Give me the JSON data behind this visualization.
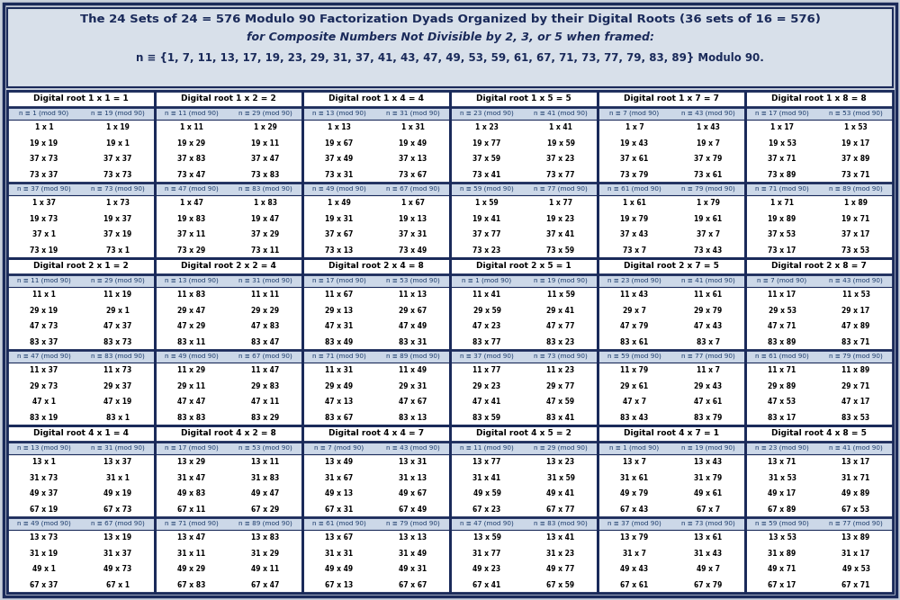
{
  "title_line1": "The 24 Sets of 24 = 576 Modulo 90 Factorization Dyads Organized by their Digital Roots (36 sets of 16 = 576)",
  "title_line2": "for Composite Numbers Not Divisible by 2, 3, or 5 when framed:",
  "title_line3": "n ≡ {1, 7, 11, 13, 17, 19, 23, 29, 31, 37, 41, 43, 47, 49, 53, 59, 61, 67, 71, 73, 77, 79, 83, 89} Modulo 90.",
  "bg_outer": "#c8d0dc",
  "bg_header": "#d8e0ea",
  "bg_section_header": "#ffffff",
  "bg_sub_header": "#ccd8e8",
  "border_color": "#1a2a5a",
  "text_color_dark": "#000000",
  "text_color_header": "#1a2a5a",
  "sections": [
    {
      "title": "Digital root 1 x 1 = 1",
      "sub1_header": [
        "n ≡ 1 (mod 90)",
        "n ≡ 19 (mod 90)"
      ],
      "sub1_rows": [
        [
          "1 x 1",
          "1 x 19"
        ],
        [
          "19 x 19",
          "19 x 1"
        ],
        [
          "37 x 73",
          "37 x 37"
        ],
        [
          "73 x 37",
          "73 x 73"
        ]
      ],
      "sub2_header": [
        "n ≡ 37 (mod 90)",
        "n ≡ 73 (mod 90)"
      ],
      "sub2_rows": [
        [
          "1 x 37",
          "1 x 73"
        ],
        [
          "19 x 73",
          "19 x 37"
        ],
        [
          "37 x 1",
          "37 x 19"
        ],
        [
          "73 x 19",
          "73 x 1"
        ]
      ]
    },
    {
      "title": "Digital root 1 x 2 = 2",
      "sub1_header": [
        "n ≡ 11 (mod 90)",
        "n ≡ 29 (mod 90)"
      ],
      "sub1_rows": [
        [
          "1 x 11",
          "1 x 29"
        ],
        [
          "19 x 29",
          "19 x 11"
        ],
        [
          "37 x 83",
          "37 x 47"
        ],
        [
          "73 x 47",
          "73 x 83"
        ]
      ],
      "sub2_header": [
        "n ≡ 47 (mod 90)",
        "n ≡ 83 (mod 90)"
      ],
      "sub2_rows": [
        [
          "1 x 47",
          "1 x 83"
        ],
        [
          "19 x 83",
          "19 x 47"
        ],
        [
          "37 x 11",
          "37 x 29"
        ],
        [
          "73 x 29",
          "73 x 11"
        ]
      ]
    },
    {
      "title": "Digital root 1 x 4 = 4",
      "sub1_header": [
        "n ≡ 13 (mod 90)",
        "n ≡ 31 (mod 90)"
      ],
      "sub1_rows": [
        [
          "1 x 13",
          "1 x 31"
        ],
        [
          "19 x 67",
          "19 x 49"
        ],
        [
          "37 x 49",
          "37 x 13"
        ],
        [
          "73 x 31",
          "73 x 67"
        ]
      ],
      "sub2_header": [
        "n ≡ 49 (mod 90)",
        "n ≡ 67 (mod 90)"
      ],
      "sub2_rows": [
        [
          "1 x 49",
          "1 x 67"
        ],
        [
          "19 x 31",
          "19 x 13"
        ],
        [
          "37 x 67",
          "37 x 31"
        ],
        [
          "73 x 13",
          "73 x 49"
        ]
      ]
    },
    {
      "title": "Digital root 1 x 5 = 5",
      "sub1_header": [
        "n ≡ 23 (mod 90)",
        "n ≡ 41 (mod 90)"
      ],
      "sub1_rows": [
        [
          "1 x 23",
          "1 x 41"
        ],
        [
          "19 x 77",
          "19 x 59"
        ],
        [
          "37 x 59",
          "37 x 23"
        ],
        [
          "73 x 41",
          "73 x 77"
        ]
      ],
      "sub2_header": [
        "n ≡ 59 (mod 90)",
        "n ≡ 77 (mod 90)"
      ],
      "sub2_rows": [
        [
          "1 x 59",
          "1 x 77"
        ],
        [
          "19 x 41",
          "19 x 23"
        ],
        [
          "37 x 77",
          "37 x 41"
        ],
        [
          "73 x 23",
          "73 x 59"
        ]
      ]
    },
    {
      "title": "Digital root 1 x 7 = 7",
      "sub1_header": [
        "n ≡ 7 (mod 90)",
        "n ≡ 43 (mod 90)"
      ],
      "sub1_rows": [
        [
          "1 x 7",
          "1 x 43"
        ],
        [
          "19 x 43",
          "19 x 7"
        ],
        [
          "37 x 61",
          "37 x 79"
        ],
        [
          "73 x 79",
          "73 x 61"
        ]
      ],
      "sub2_header": [
        "n ≡ 61 (mod 90)",
        "n ≡ 79 (mod 90)"
      ],
      "sub2_rows": [
        [
          "1 x 61",
          "1 x 79"
        ],
        [
          "19 x 79",
          "19 x 61"
        ],
        [
          "37 x 43",
          "37 x 7"
        ],
        [
          "73 x 7",
          "73 x 43"
        ]
      ]
    },
    {
      "title": "Digital root 1 x 8 = 8",
      "sub1_header": [
        "n ≡ 17 (mod 90)",
        "n ≡ 53 (mod 90)"
      ],
      "sub1_rows": [
        [
          "1 x 17",
          "1 x 53"
        ],
        [
          "19 x 53",
          "19 x 17"
        ],
        [
          "37 x 71",
          "37 x 89"
        ],
        [
          "73 x 89",
          "73 x 71"
        ]
      ],
      "sub2_header": [
        "n ≡ 71 (mod 90)",
        "n ≡ 89 (mod 90)"
      ],
      "sub2_rows": [
        [
          "1 x 71",
          "1 x 89"
        ],
        [
          "19 x 89",
          "19 x 71"
        ],
        [
          "37 x 53",
          "37 x 17"
        ],
        [
          "73 x 17",
          "73 x 53"
        ]
      ]
    },
    {
      "title": "Digital root 2 x 1 = 2",
      "sub1_header": [
        "n ≡ 11 (mod 90)",
        "n ≡ 29 (mod 90)"
      ],
      "sub1_rows": [
        [
          "11 x 1",
          "11 x 19"
        ],
        [
          "29 x 19",
          "29 x 1"
        ],
        [
          "47 x 73",
          "47 x 37"
        ],
        [
          "83 x 37",
          "83 x 73"
        ]
      ],
      "sub2_header": [
        "n ≡ 47 (mod 90)",
        "n ≡ 83 (mod 90)"
      ],
      "sub2_rows": [
        [
          "11 x 37",
          "11 x 73"
        ],
        [
          "29 x 73",
          "29 x 37"
        ],
        [
          "47 x 1",
          "47 x 19"
        ],
        [
          "83 x 19",
          "83 x 1"
        ]
      ]
    },
    {
      "title": "Digital root 2 x 2 = 4",
      "sub1_header": [
        "n ≡ 13 (mod 90)",
        "n ≡ 31 (mod 90)"
      ],
      "sub1_rows": [
        [
          "11 x 83",
          "11 x 11"
        ],
        [
          "29 x 47",
          "29 x 29"
        ],
        [
          "47 x 29",
          "47 x 83"
        ],
        [
          "83 x 11",
          "83 x 47"
        ]
      ],
      "sub2_header": [
        "n ≡ 49 (mod 90)",
        "n ≡ 67 (mod 90)"
      ],
      "sub2_rows": [
        [
          "11 x 29",
          "11 x 47"
        ],
        [
          "29 x 11",
          "29 x 83"
        ],
        [
          "47 x 47",
          "47 x 11"
        ],
        [
          "83 x 83",
          "83 x 29"
        ]
      ]
    },
    {
      "title": "Digital root 2 x 4 = 8",
      "sub1_header": [
        "n ≡ 17 (mod 90)",
        "n ≡ 53 (mod 90)"
      ],
      "sub1_rows": [
        [
          "11 x 67",
          "11 x 13"
        ],
        [
          "29 x 13",
          "29 x 67"
        ],
        [
          "47 x 31",
          "47 x 49"
        ],
        [
          "83 x 49",
          "83 x 31"
        ]
      ],
      "sub2_header": [
        "n ≡ 71 (mod 90)",
        "n ≡ 89 (mod 90)"
      ],
      "sub2_rows": [
        [
          "11 x 31",
          "11 x 49"
        ],
        [
          "29 x 49",
          "29 x 31"
        ],
        [
          "47 x 13",
          "47 x 67"
        ],
        [
          "83 x 67",
          "83 x 13"
        ]
      ]
    },
    {
      "title": "Digital root 2 x 5 = 1",
      "sub1_header": [
        "n ≡ 1 (mod 90)",
        "n ≡ 19 (mod 90)"
      ],
      "sub1_rows": [
        [
          "11 x 41",
          "11 x 59"
        ],
        [
          "29 x 59",
          "29 x 41"
        ],
        [
          "47 x 23",
          "47 x 77"
        ],
        [
          "83 x 77",
          "83 x 23"
        ]
      ],
      "sub2_header": [
        "n ≡ 37 (mod 90)",
        "n ≡ 73 (mod 90)"
      ],
      "sub2_rows": [
        [
          "11 x 77",
          "11 x 23"
        ],
        [
          "29 x 23",
          "29 x 77"
        ],
        [
          "47 x 41",
          "47 x 59"
        ],
        [
          "83 x 59",
          "83 x 41"
        ]
      ]
    },
    {
      "title": "Digital root 2 x 7 = 5",
      "sub1_header": [
        "n ≡ 23 (mod 90)",
        "n ≡ 41 (mod 90)"
      ],
      "sub1_rows": [
        [
          "11 x 43",
          "11 x 61"
        ],
        [
          "29 x 7",
          "29 x 79"
        ],
        [
          "47 x 79",
          "47 x 43"
        ],
        [
          "83 x 61",
          "83 x 7"
        ]
      ],
      "sub2_header": [
        "n ≡ 59 (mod 90)",
        "n ≡ 77 (mod 90)"
      ],
      "sub2_rows": [
        [
          "11 x 79",
          "11 x 7"
        ],
        [
          "29 x 61",
          "29 x 43"
        ],
        [
          "47 x 7",
          "47 x 61"
        ],
        [
          "83 x 43",
          "83 x 79"
        ]
      ]
    },
    {
      "title": "Digital root 2 x 8 = 7",
      "sub1_header": [
        "n ≡ 7 (mod 90)",
        "n ≡ 43 (mod 90)"
      ],
      "sub1_rows": [
        [
          "11 x 17",
          "11 x 53"
        ],
        [
          "29 x 53",
          "29 x 17"
        ],
        [
          "47 x 71",
          "47 x 89"
        ],
        [
          "83 x 89",
          "83 x 71"
        ]
      ],
      "sub2_header": [
        "n ≡ 61 (mod 90)",
        "n ≡ 79 (mod 90)"
      ],
      "sub2_rows": [
        [
          "11 x 71",
          "11 x 89"
        ],
        [
          "29 x 89",
          "29 x 71"
        ],
        [
          "47 x 53",
          "47 x 17"
        ],
        [
          "83 x 17",
          "83 x 53"
        ]
      ]
    },
    {
      "title": "Digital root 4 x 1 = 4",
      "sub1_header": [
        "n ≡ 13 (mod 90)",
        "n ≡ 31 (mod 90)"
      ],
      "sub1_rows": [
        [
          "13 x 1",
          "13 x 37"
        ],
        [
          "31 x 73",
          "31 x 1"
        ],
        [
          "49 x 37",
          "49 x 19"
        ],
        [
          "67 x 19",
          "67 x 73"
        ]
      ],
      "sub2_header": [
        "n ≡ 49 (mod 90)",
        "n ≡ 67 (mod 90)"
      ],
      "sub2_rows": [
        [
          "13 x 73",
          "13 x 19"
        ],
        [
          "31 x 19",
          "31 x 37"
        ],
        [
          "49 x 1",
          "49 x 73"
        ],
        [
          "67 x 37",
          "67 x 1"
        ]
      ]
    },
    {
      "title": "Digital root 4 x 2 = 8",
      "sub1_header": [
        "n ≡ 17 (mod 90)",
        "n ≡ 53 (mod 90)"
      ],
      "sub1_rows": [
        [
          "13 x 29",
          "13 x 11"
        ],
        [
          "31 x 47",
          "31 x 83"
        ],
        [
          "49 x 83",
          "49 x 47"
        ],
        [
          "67 x 11",
          "67 x 29"
        ]
      ],
      "sub2_header": [
        "n ≡ 71 (mod 90)",
        "n ≡ 89 (mod 90)"
      ],
      "sub2_rows": [
        [
          "13 x 47",
          "13 x 83"
        ],
        [
          "31 x 11",
          "31 x 29"
        ],
        [
          "49 x 29",
          "49 x 11"
        ],
        [
          "67 x 83",
          "67 x 47"
        ]
      ]
    },
    {
      "title": "Digital root 4 x 4 = 7",
      "sub1_header": [
        "n ≡ 7 (mod 90)",
        "n ≡ 43 (mod 90)"
      ],
      "sub1_rows": [
        [
          "13 x 49",
          "13 x 31"
        ],
        [
          "31 x 67",
          "31 x 13"
        ],
        [
          "49 x 13",
          "49 x 67"
        ],
        [
          "67 x 31",
          "67 x 49"
        ]
      ],
      "sub2_header": [
        "n ≡ 61 (mod 90)",
        "n ≡ 79 (mod 90)"
      ],
      "sub2_rows": [
        [
          "13 x 67",
          "13 x 13"
        ],
        [
          "31 x 31",
          "31 x 49"
        ],
        [
          "49 x 49",
          "49 x 31"
        ],
        [
          "67 x 13",
          "67 x 67"
        ]
      ]
    },
    {
      "title": "Digital root 4 x 5 = 2",
      "sub1_header": [
        "n ≡ 11 (mod 90)",
        "n ≡ 29 (mod 90)"
      ],
      "sub1_rows": [
        [
          "13 x 77",
          "13 x 23"
        ],
        [
          "31 x 41",
          "31 x 59"
        ],
        [
          "49 x 59",
          "49 x 41"
        ],
        [
          "67 x 23",
          "67 x 77"
        ]
      ],
      "sub2_header": [
        "n ≡ 47 (mod 90)",
        "n ≡ 83 (mod 90)"
      ],
      "sub2_rows": [
        [
          "13 x 59",
          "13 x 41"
        ],
        [
          "31 x 77",
          "31 x 23"
        ],
        [
          "49 x 23",
          "49 x 77"
        ],
        [
          "67 x 41",
          "67 x 59"
        ]
      ]
    },
    {
      "title": "Digital root 4 x 7 = 1",
      "sub1_header": [
        "n ≡ 1 (mod 90)",
        "n ≡ 19 (mod 90)"
      ],
      "sub1_rows": [
        [
          "13 x 7",
          "13 x 43"
        ],
        [
          "31 x 61",
          "31 x 79"
        ],
        [
          "49 x 79",
          "49 x 61"
        ],
        [
          "67 x 43",
          "67 x 7"
        ]
      ],
      "sub2_header": [
        "n ≡ 37 (mod 90)",
        "n ≡ 73 (mod 90)"
      ],
      "sub2_rows": [
        [
          "13 x 79",
          "13 x 61"
        ],
        [
          "31 x 7",
          "31 x 43"
        ],
        [
          "49 x 43",
          "49 x 7"
        ],
        [
          "67 x 61",
          "67 x 79"
        ]
      ]
    },
    {
      "title": "Digital root 4 x 8 = 5",
      "sub1_header": [
        "n ≡ 23 (mod 90)",
        "n ≡ 41 (mod 90)"
      ],
      "sub1_rows": [
        [
          "13 x 71",
          "13 x 17"
        ],
        [
          "31 x 53",
          "31 x 71"
        ],
        [
          "49 x 17",
          "49 x 89"
        ],
        [
          "67 x 89",
          "67 x 53"
        ]
      ],
      "sub2_header": [
        "n ≡ 59 (mod 90)",
        "n ≡ 77 (mod 90)"
      ],
      "sub2_rows": [
        [
          "13 x 53",
          "13 x 89"
        ],
        [
          "31 x 89",
          "31 x 17"
        ],
        [
          "49 x 71",
          "49 x 53"
        ],
        [
          "67 x 17",
          "67 x 71"
        ]
      ]
    }
  ]
}
